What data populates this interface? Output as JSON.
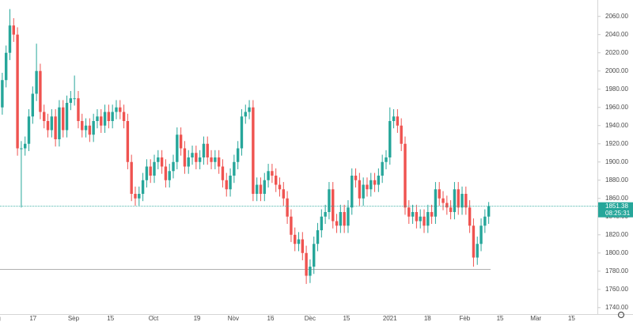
{
  "chart_data": {
    "type": "candlestick",
    "xlim": [
      -0.6,
      156.6
    ],
    "xticks": [
      {
        "value": -1.9,
        "label": "Aug"
      },
      {
        "value": 8.1,
        "label": "17"
      },
      {
        "value": 18.75,
        "label": "Sep"
      },
      {
        "value": 28.5,
        "label": "15"
      },
      {
        "value": 39.8,
        "label": "Oct"
      },
      {
        "value": 51.25,
        "label": "19"
      },
      {
        "value": 60.8,
        "label": "Nov"
      },
      {
        "value": 70.6,
        "label": "16"
      },
      {
        "value": 81,
        "label": "Dec"
      },
      {
        "value": 90.6,
        "label": "15"
      },
      {
        "value": 102,
        "label": "2021"
      },
      {
        "value": 111.9,
        "label": "18"
      },
      {
        "value": 121.7,
        "label": "Feb"
      },
      {
        "value": 131,
        "label": "15"
      },
      {
        "value": 140.4,
        "label": "Mar"
      },
      {
        "value": 149.8,
        "label": "15"
      }
    ],
    "ylim": [
      1732,
      2078
    ],
    "yticks": [
      {
        "value": 1740,
        "label": "1740.00"
      },
      {
        "value": 1760,
        "label": "1760.00"
      },
      {
        "value": 1780,
        "label": "1780.00"
      },
      {
        "value": 1800,
        "label": "1800.00"
      },
      {
        "value": 1820,
        "label": "1820.00"
      },
      {
        "value": 1840,
        "label": "1840.00"
      },
      {
        "value": 1860,
        "label": "1860.00"
      },
      {
        "value": 1880,
        "label": "1880.00"
      },
      {
        "value": 1900,
        "label": "1900.00"
      },
      {
        "value": 1920,
        "label": "1920.00"
      },
      {
        "value": 1940,
        "label": "1940.00"
      },
      {
        "value": 1960,
        "label": "1960.00"
      },
      {
        "value": 1980,
        "label": "1980.00"
      },
      {
        "value": 2000,
        "label": "2000.00"
      },
      {
        "value": 2020,
        "label": "2020.00"
      },
      {
        "value": 2040,
        "label": "2040.00"
      },
      {
        "value": 2060,
        "label": "2060.00"
      }
    ],
    "up_color": "#26a69a",
    "down_color": "#ef5350",
    "last_price": 1851.38,
    "countdown": "08:25:31",
    "hline": 1782,
    "series": {
      "open": [
        1960,
        1990,
        2020,
        2050,
        2040,
        1915,
        1915,
        1920,
        1950,
        1975,
        2000,
        1955,
        1945,
        1935,
        1950,
        1925,
        1960,
        1935,
        1965,
        1970,
        1970,
        1945,
        1935,
        1940,
        1930,
        1945,
        1950,
        1940,
        1955,
        1945,
        1955,
        1960,
        1955,
        1945,
        1900,
        1865,
        1860,
        1865,
        1880,
        1895,
        1885,
        1900,
        1905,
        1895,
        1880,
        1890,
        1900,
        1930,
        1915,
        1895,
        1905,
        1910,
        1900,
        1905,
        1920,
        1905,
        1900,
        1905,
        1895,
        1880,
        1870,
        1885,
        1900,
        1915,
        1950,
        1955,
        1960,
        1865,
        1875,
        1865,
        1880,
        1890,
        1885,
        1875,
        1870,
        1860,
        1840,
        1820,
        1810,
        1815,
        1800,
        1775,
        1785,
        1810,
        1825,
        1840,
        1845,
        1870,
        1835,
        1830,
        1845,
        1830,
        1850,
        1885,
        1880,
        1860,
        1875,
        1870,
        1880,
        1875,
        1885,
        1900,
        1905,
        1945,
        1950,
        1940,
        1920,
        1850,
        1840,
        1845,
        1835,
        1840,
        1830,
        1845,
        1840,
        1870,
        1860,
        1855,
        1850,
        1845,
        1870,
        1850,
        1865,
        1850,
        1830,
        1795,
        1810,
        1830,
        1840
      ],
      "high": [
        1998,
        2028,
        2068,
        2058,
        2048,
        1923,
        1928,
        1958,
        1983,
        2030,
        2008,
        1963,
        1953,
        1958,
        1958,
        1968,
        1968,
        1973,
        1978,
        1995,
        1978,
        1953,
        1948,
        1948,
        1953,
        1958,
        1958,
        1963,
        1963,
        1963,
        1968,
        1968,
        1963,
        1953,
        1908,
        1873,
        1873,
        1888,
        1903,
        1903,
        1908,
        1913,
        1913,
        1903,
        1898,
        1908,
        1938,
        1938,
        1923,
        1913,
        1918,
        1918,
        1913,
        1928,
        1928,
        1913,
        1913,
        1913,
        1903,
        1888,
        1893,
        1908,
        1923,
        1958,
        1963,
        1968,
        1968,
        1883,
        1883,
        1888,
        1898,
        1898,
        1893,
        1883,
        1878,
        1868,
        1848,
        1828,
        1823,
        1823,
        1808,
        1793,
        1818,
        1833,
        1848,
        1853,
        1878,
        1878,
        1843,
        1853,
        1853,
        1858,
        1893,
        1893,
        1888,
        1883,
        1883,
        1888,
        1888,
        1893,
        1908,
        1913,
        1960,
        1958,
        1958,
        1948,
        1928,
        1858,
        1853,
        1853,
        1848,
        1848,
        1853,
        1853,
        1878,
        1878,
        1868,
        1863,
        1858,
        1878,
        1878,
        1873,
        1873,
        1858,
        1838,
        1818,
        1838,
        1848,
        1856
      ],
      "low": [
        1952,
        1982,
        2012,
        2032,
        1907,
        1850,
        1907,
        1912,
        1942,
        1967,
        1947,
        1937,
        1927,
        1927,
        1917,
        1917,
        1927,
        1927,
        1957,
        1962,
        1937,
        1927,
        1927,
        1922,
        1922,
        1937,
        1932,
        1932,
        1937,
        1937,
        1947,
        1947,
        1937,
        1892,
        1857,
        1852,
        1852,
        1857,
        1872,
        1877,
        1877,
        1892,
        1887,
        1872,
        1872,
        1882,
        1892,
        1907,
        1887,
        1887,
        1897,
        1892,
        1892,
        1897,
        1897,
        1892,
        1892,
        1887,
        1872,
        1862,
        1862,
        1877,
        1892,
        1907,
        1942,
        1947,
        1857,
        1857,
        1857,
        1857,
        1872,
        1877,
        1867,
        1862,
        1852,
        1832,
        1812,
        1802,
        1802,
        1792,
        1766,
        1767,
        1777,
        1802,
        1817,
        1832,
        1837,
        1827,
        1822,
        1822,
        1822,
        1822,
        1842,
        1872,
        1852,
        1852,
        1862,
        1862,
        1867,
        1867,
        1877,
        1892,
        1897,
        1937,
        1932,
        1912,
        1842,
        1832,
        1832,
        1827,
        1827,
        1822,
        1822,
        1832,
        1832,
        1852,
        1847,
        1842,
        1837,
        1837,
        1842,
        1842,
        1842,
        1822,
        1785,
        1787,
        1802,
        1822,
        1832
      ],
      "close": [
        1990,
        2020,
        2050,
        2040,
        1915,
        1915,
        1920,
        1950,
        1975,
        2000,
        1955,
        1945,
        1935,
        1950,
        1925,
        1960,
        1935,
        1965,
        1970,
        1970,
        1945,
        1935,
        1940,
        1930,
        1945,
        1950,
        1940,
        1955,
        1945,
        1955,
        1960,
        1955,
        1945,
        1900,
        1865,
        1860,
        1865,
        1880,
        1895,
        1885,
        1900,
        1905,
        1895,
        1880,
        1890,
        1900,
        1930,
        1915,
        1895,
        1905,
        1910,
        1900,
        1905,
        1920,
        1905,
        1900,
        1905,
        1895,
        1880,
        1870,
        1885,
        1900,
        1915,
        1950,
        1955,
        1960,
        1865,
        1875,
        1865,
        1880,
        1890,
        1885,
        1875,
        1870,
        1860,
        1840,
        1820,
        1810,
        1815,
        1800,
        1775,
        1785,
        1810,
        1825,
        1840,
        1845,
        1870,
        1835,
        1830,
        1845,
        1830,
        1850,
        1885,
        1880,
        1860,
        1875,
        1870,
        1880,
        1875,
        1885,
        1900,
        1905,
        1945,
        1950,
        1940,
        1920,
        1850,
        1840,
        1845,
        1835,
        1840,
        1830,
        1845,
        1840,
        1870,
        1860,
        1855,
        1850,
        1845,
        1870,
        1850,
        1865,
        1850,
        1830,
        1795,
        1810,
        1830,
        1840,
        1851.38
      ]
    }
  }
}
